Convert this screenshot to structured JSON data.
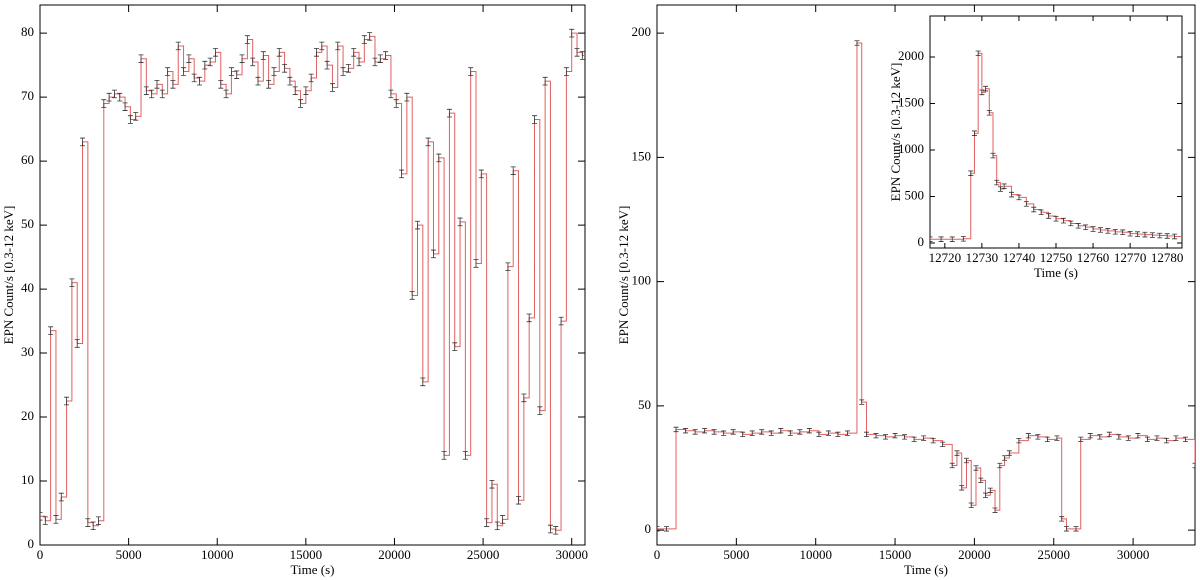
{
  "chart_data": [
    {
      "type": "line",
      "xlabel": "Time (s)",
      "ylabel": "EPN Count/s [0.3-12 keV]",
      "color": "#e06060",
      "yerr": 0.6,
      "xlim": [
        0,
        30750
      ],
      "ylim": [
        0,
        84.4
      ],
      "xticks": [
        0,
        5000,
        10000,
        15000,
        20000,
        25000,
        30000
      ],
      "yticks": [
        0,
        10,
        20,
        30,
        40,
        50,
        60,
        70,
        80
      ],
      "x": [
        0,
        300,
        600,
        900,
        1200,
        1500,
        1800,
        2100,
        2400,
        2700,
        3000,
        3300,
        3600,
        3900,
        4200,
        4500,
        4800,
        5100,
        5400,
        5700,
        6000,
        6300,
        6600,
        6900,
        7200,
        7500,
        7800,
        8100,
        8400,
        8700,
        9000,
        9300,
        9600,
        9900,
        10200,
        10500,
        10800,
        11100,
        11400,
        11700,
        12000,
        12300,
        12600,
        12900,
        13200,
        13500,
        13800,
        14100,
        14400,
        14700,
        15000,
        15300,
        15600,
        15900,
        16200,
        16500,
        16800,
        17100,
        17400,
        17700,
        18000,
        18300,
        18600,
        18900,
        19200,
        19500,
        19800,
        20100,
        20400,
        20700,
        21000,
        21300,
        21600,
        21900,
        22200,
        22500,
        22800,
        23100,
        23400,
        23700,
        24000,
        24300,
        24600,
        24900,
        25200,
        25500,
        25800,
        26100,
        26400,
        26700,
        27000,
        27300,
        27600,
        27900,
        28200,
        28500,
        28800,
        29100,
        29400,
        29700,
        30000,
        30300,
        30600
      ],
      "values": [
        4.5,
        3.8,
        33.5,
        4,
        7.5,
        22.5,
        41,
        31.5,
        63,
        3.5,
        3,
        3.8,
        69,
        70,
        70.5,
        70,
        68.5,
        66.5,
        67,
        76,
        71,
        70.5,
        72,
        70.5,
        74,
        72,
        78,
        74,
        76,
        73,
        72.5,
        75,
        75.5,
        77,
        72,
        70.5,
        74,
        73.5,
        76,
        79,
        75.5,
        72.5,
        76.5,
        72,
        74,
        77,
        74.5,
        72.5,
        71,
        69,
        71,
        73,
        77,
        78,
        75,
        71.5,
        78,
        74,
        74.5,
        77,
        75.5,
        79,
        79.5,
        75.5,
        76,
        76.5,
        70.5,
        69,
        58,
        70,
        39,
        50,
        25.5,
        63,
        45.5,
        60.5,
        14,
        67.5,
        31,
        50.5,
        14,
        74,
        44,
        58,
        3.5,
        9.5,
        3,
        4,
        43.5,
        58.5,
        7,
        23,
        35.5,
        66.5,
        21,
        72.5,
        2.5,
        2.3,
        35,
        74,
        80,
        77,
        76.5
      ]
    },
    {
      "type": "line",
      "xlabel": "Time (s)",
      "ylabel": "EPN Count/s [0.3-12 keV]",
      "color": "#e06060",
      "yerr": 0.9,
      "xlim": [
        0,
        33900
      ],
      "ylim": [
        -6,
        211.3
      ],
      "xticks": [
        0,
        5000,
        10000,
        15000,
        20000,
        25000,
        30000
      ],
      "yticks": [
        0,
        50,
        100,
        150,
        200
      ],
      "x": [
        0,
        600,
        1200,
        1800,
        2400,
        3000,
        3600,
        4200,
        4800,
        5400,
        6000,
        6600,
        7200,
        7800,
        8400,
        9000,
        9600,
        10200,
        10800,
        11400,
        12000,
        12600,
        12900,
        13200,
        13800,
        14400,
        15000,
        15600,
        16200,
        16800,
        17400,
        18000,
        18600,
        18900,
        19200,
        19500,
        19800,
        20100,
        20400,
        20700,
        21000,
        21300,
        21600,
        21900,
        22200,
        22800,
        23400,
        24000,
        24600,
        25200,
        25500,
        25800,
        26400,
        26700,
        27300,
        27900,
        28500,
        29100,
        29700,
        30300,
        30900,
        31500,
        32100,
        32700,
        33300,
        33900
      ],
      "values": [
        0.5,
        0.5,
        40.5,
        40,
        39.5,
        40,
        39.5,
        39,
        39.5,
        38.5,
        39,
        39.5,
        39,
        40,
        39,
        39.5,
        40,
        38.5,
        39,
        38.5,
        39,
        196,
        51.5,
        38.5,
        38,
        37.5,
        38,
        37.5,
        36.5,
        37,
        36,
        34.5,
        26,
        31,
        17,
        28,
        10,
        25,
        20,
        14,
        16,
        8,
        26,
        29,
        31,
        36,
        38,
        37.5,
        36.5,
        37,
        4.5,
        0.5,
        0.5,
        36.5,
        38,
        37.5,
        38.5,
        37.5,
        37,
        38,
        36.5,
        37,
        36,
        37,
        36.5,
        26
      ]
    },
    {
      "type": "line",
      "xlabel": "Time (s)",
      "ylabel": "EPN Count/s [0.3-12 keV]",
      "color": "#e06060",
      "yerr": 25,
      "xlim": [
        12716,
        12784
      ],
      "ylim": [
        -54,
        2441
      ],
      "xticks": [
        12720,
        12730,
        12740,
        12750,
        12760,
        12770,
        12780
      ],
      "yticks": [
        0,
        500,
        1000,
        1500,
        2000
      ],
      "x": [
        12716,
        12719,
        12722,
        12725,
        12727,
        12728,
        12729,
        12730,
        12731,
        12732,
        12733,
        12734,
        12735,
        12736,
        12738,
        12740,
        12742,
        12744,
        12746,
        12748,
        12750,
        12752,
        12754,
        12756,
        12758,
        12760,
        12762,
        12764,
        12766,
        12768,
        12770,
        12772,
        12774,
        12776,
        12778,
        12780,
        12782
      ],
      "values": [
        40,
        40,
        40,
        45,
        750,
        1180,
        2040,
        1620,
        1660,
        1400,
        940,
        650,
        580,
        610,
        520,
        490,
        420,
        360,
        330,
        290,
        260,
        240,
        210,
        185,
        170,
        150,
        140,
        130,
        120,
        115,
        100,
        95,
        90,
        85,
        80,
        75,
        70
      ]
    }
  ]
}
